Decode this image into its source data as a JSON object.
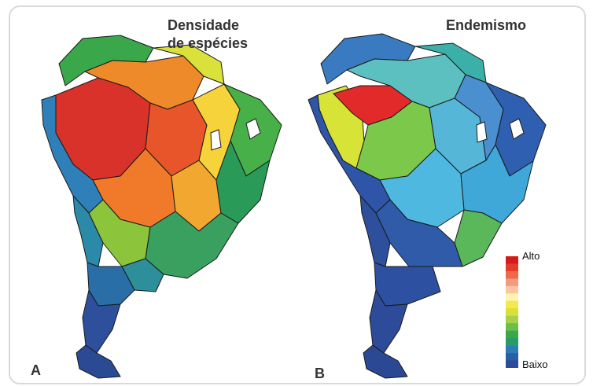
{
  "panels": [
    {
      "letter": "A",
      "title": "Densidade\nde espécies",
      "regions": [
        {
          "id": "n-coast",
          "color": "#3aa84a"
        },
        {
          "id": "guiana",
          "color": "#d9e13a"
        },
        {
          "id": "n-amazon",
          "color": "#ee8a2a"
        },
        {
          "id": "w-amazon",
          "color": "#d8322a"
        },
        {
          "id": "c-amazon",
          "color": "#e9552a"
        },
        {
          "id": "s-amazon",
          "color": "#f07a2a"
        },
        {
          "id": "se-amazon",
          "color": "#f2a830"
        },
        {
          "id": "cerrado",
          "color": "#f6d33a"
        },
        {
          "id": "ne-brazil",
          "color": "#48b048"
        },
        {
          "id": "e-coast",
          "color": "#2a9a58"
        },
        {
          "id": "andes-n",
          "color": "#2f7fb8"
        },
        {
          "id": "andes-s",
          "color": "#2a8aa8"
        },
        {
          "id": "chaco",
          "color": "#8cc43c"
        },
        {
          "id": "s-brazil",
          "color": "#3aa060"
        },
        {
          "id": "uruguay",
          "color": "#2c8f9a"
        },
        {
          "id": "pampas",
          "color": "#2a6ea8"
        },
        {
          "id": "patagonia",
          "color": "#2d4f9c"
        },
        {
          "id": "tierra",
          "color": "#2b4a94"
        }
      ]
    },
    {
      "letter": "B",
      "title": "Endemismo",
      "regions": [
        {
          "id": "n-coast",
          "color": "#3a7ac0"
        },
        {
          "id": "guiana",
          "color": "#3ab0a8"
        },
        {
          "id": "n-amazon",
          "color": "#5cc0c0"
        },
        {
          "id": "w-amazon",
          "color": "#d7e337"
        },
        {
          "id": "hotspot",
          "color": "#e32a2a"
        },
        {
          "id": "c-amazon",
          "color": "#7cc84a"
        },
        {
          "id": "s-amazon",
          "color": "#4fb8e0"
        },
        {
          "id": "se-amazon",
          "color": "#56b6d8"
        },
        {
          "id": "cerrado",
          "color": "#4a8fd0"
        },
        {
          "id": "ne-brazil",
          "color": "#2f5fb0"
        },
        {
          "id": "e-coast",
          "color": "#40a8d8"
        },
        {
          "id": "atl-forest",
          "color": "#5ab85a"
        },
        {
          "id": "andes-n",
          "color": "#2f55a8"
        },
        {
          "id": "andes-s",
          "color": "#2d4f9c"
        },
        {
          "id": "chaco",
          "color": "#2f5ba8"
        },
        {
          "id": "pampas",
          "color": "#2d50a0"
        },
        {
          "id": "patagonia",
          "color": "#2d4b98"
        },
        {
          "id": "tierra",
          "color": "#2b4894"
        }
      ]
    }
  ],
  "legend": {
    "high": "Alto",
    "low": "Baixo",
    "colors": [
      "#d7191c",
      "#e23b2c",
      "#ec6a4a",
      "#f59a7a",
      "#fbc6a0",
      "#fff3b0",
      "#f6e84a",
      "#d9e03a",
      "#a8d04a",
      "#6cbe4a",
      "#3aa84a",
      "#2a9a6a",
      "#2a7fb0",
      "#2a5ea8",
      "#2b4a9a"
    ]
  }
}
